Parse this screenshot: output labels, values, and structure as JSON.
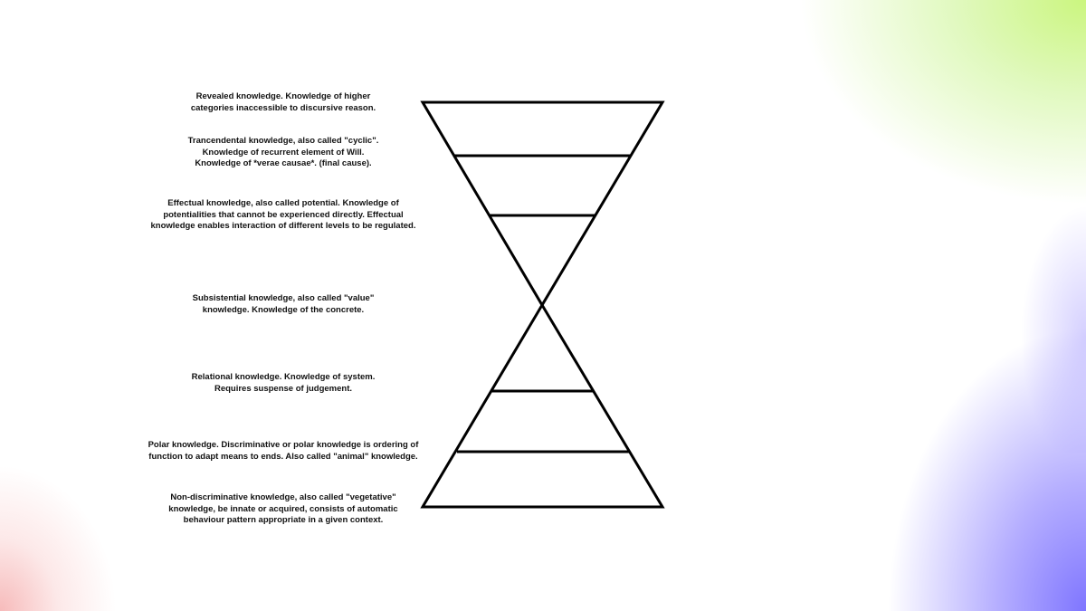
{
  "background": {
    "base_color": "#ffffff",
    "corner_colors": {
      "top_right": "#c8f578",
      "bottom_right": "#786eff",
      "bottom_left": "#f5afaf"
    }
  },
  "diagram": {
    "stroke_color": "#000000",
    "levels": [
      {
        "text": "Revealed knowledge. Knowledge of higher\ncategories inaccessible to discursive reason."
      },
      {
        "text": "Trancendental knowledge, also called \"cyclic\".\nKnowledge of recurrent element of Will.\nKnowledge of *verae causae*. (final cause)."
      },
      {
        "text": "Effectual knowledge, also called potential. Knowledge of\npotentialities that cannot be experienced directly. Effectual\nknowledge enables interaction of different levels to be regulated."
      },
      {
        "text": "Subsistential knowledge, also called \"value\"\nknowledge. Knowledge of the concrete."
      },
      {
        "text": "Relational knowledge. Knowledge of system.\nRequires suspense of judgement."
      },
      {
        "text": "Polar knowledge. Discriminative or polar knowledge is ordering of\nfunction to adapt means to ends. Also called \"animal\" knowledge."
      },
      {
        "text": "Non-discriminative knowledge, also called \"vegetative\"\nknowledge, be innate or acquired, consists of automatic\nbehaviour pattern appropriate in a given context."
      }
    ]
  }
}
